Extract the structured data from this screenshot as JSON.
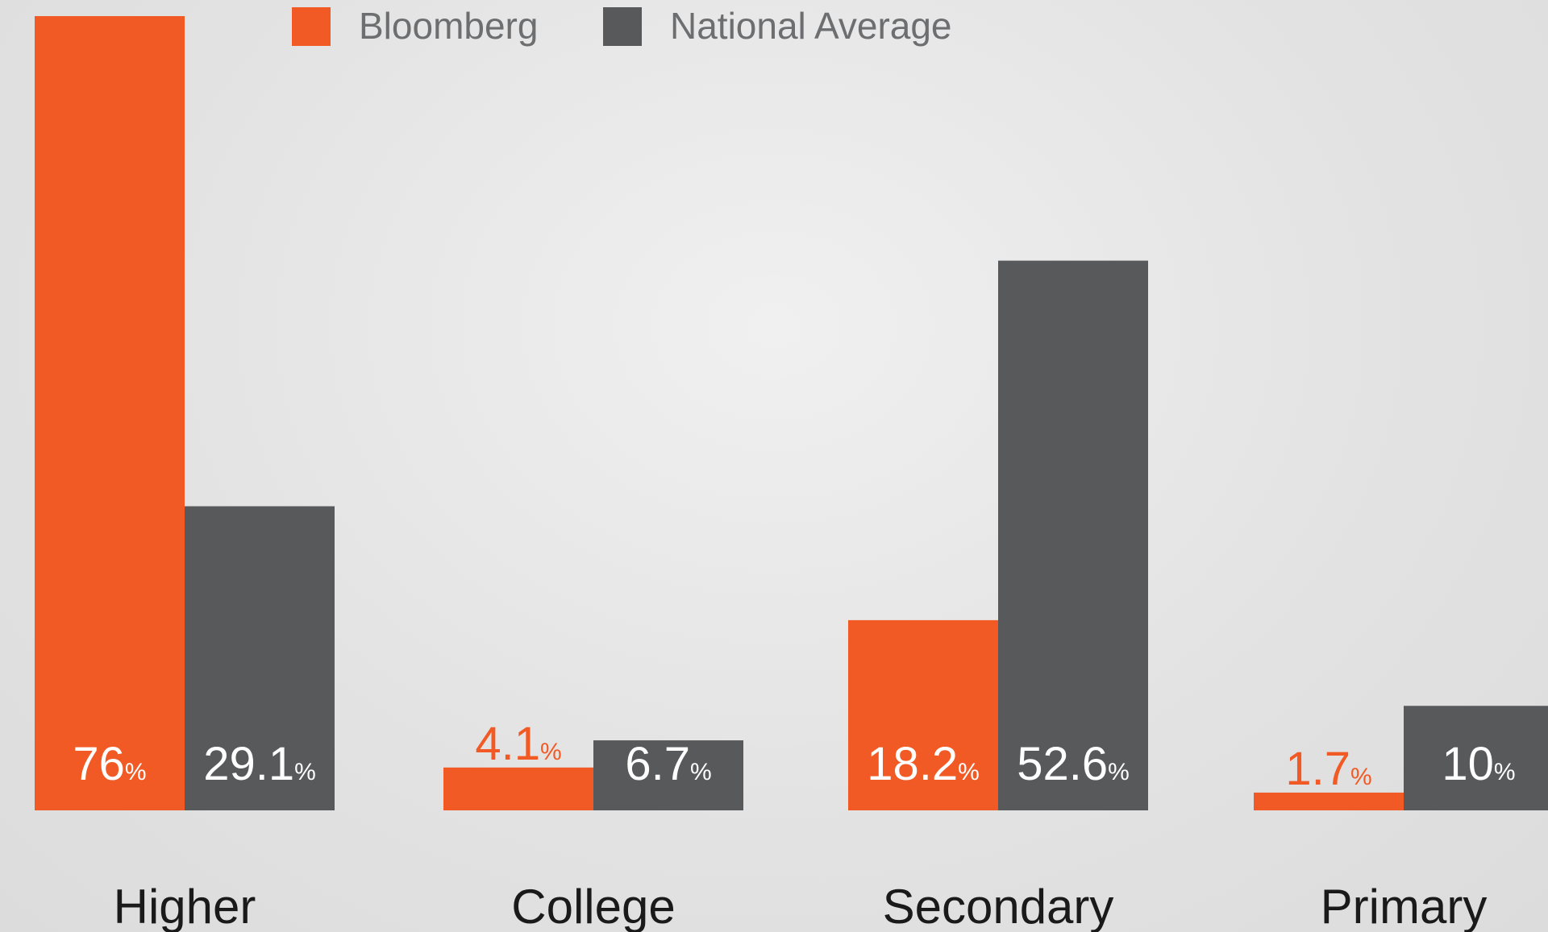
{
  "chart_data": {
    "type": "bar",
    "categories": [
      "Higher",
      "College",
      "Secondary",
      "Primary"
    ],
    "series": [
      {
        "name": "Bloomberg",
        "color": "#f15a24",
        "values": [
          76,
          4.1,
          18.2,
          1.7
        ],
        "value_labels": [
          "76%",
          "4.1%",
          "18.2%",
          "1.7%"
        ]
      },
      {
        "name": "National Average",
        "color": "#58595b",
        "values": [
          29.1,
          6.7,
          52.6,
          10
        ],
        "value_labels": [
          "29.1%",
          "6.7%",
          "52.6%",
          "10%"
        ]
      }
    ],
    "legend": "top"
  }
}
